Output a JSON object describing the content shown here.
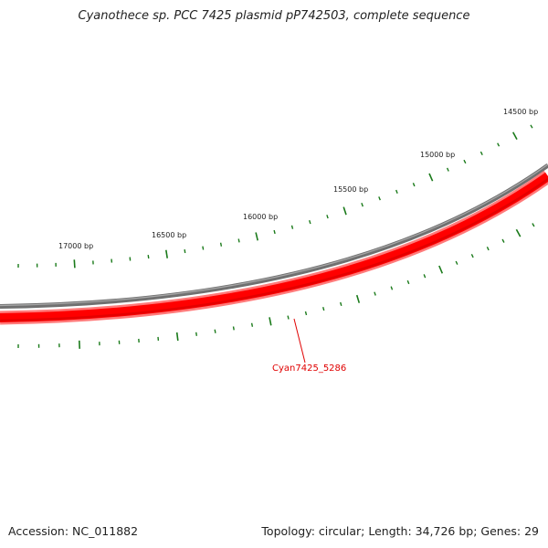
{
  "title": "Cyanothece sp. PCC 7425 plasmid pP742503, complete sequence",
  "footer": {
    "accession": "Accession: NC_011882",
    "summary": "Topology: circular; Length: 34,726 bp; Genes: 29"
  },
  "map": {
    "tick_labels": [
      "17000 bp",
      "16500 bp",
      "16000 bp",
      "15500 bp",
      "15000 bp",
      "14500 bp"
    ],
    "gene_label": "Cyan7425_5286",
    "colors": {
      "backbone": "#808080",
      "gene": "#ff0000",
      "gene_light": "#ff7070",
      "gene_dark": "#cc0000",
      "ticks": "#1a7a1a",
      "label": "#e00000"
    }
  }
}
